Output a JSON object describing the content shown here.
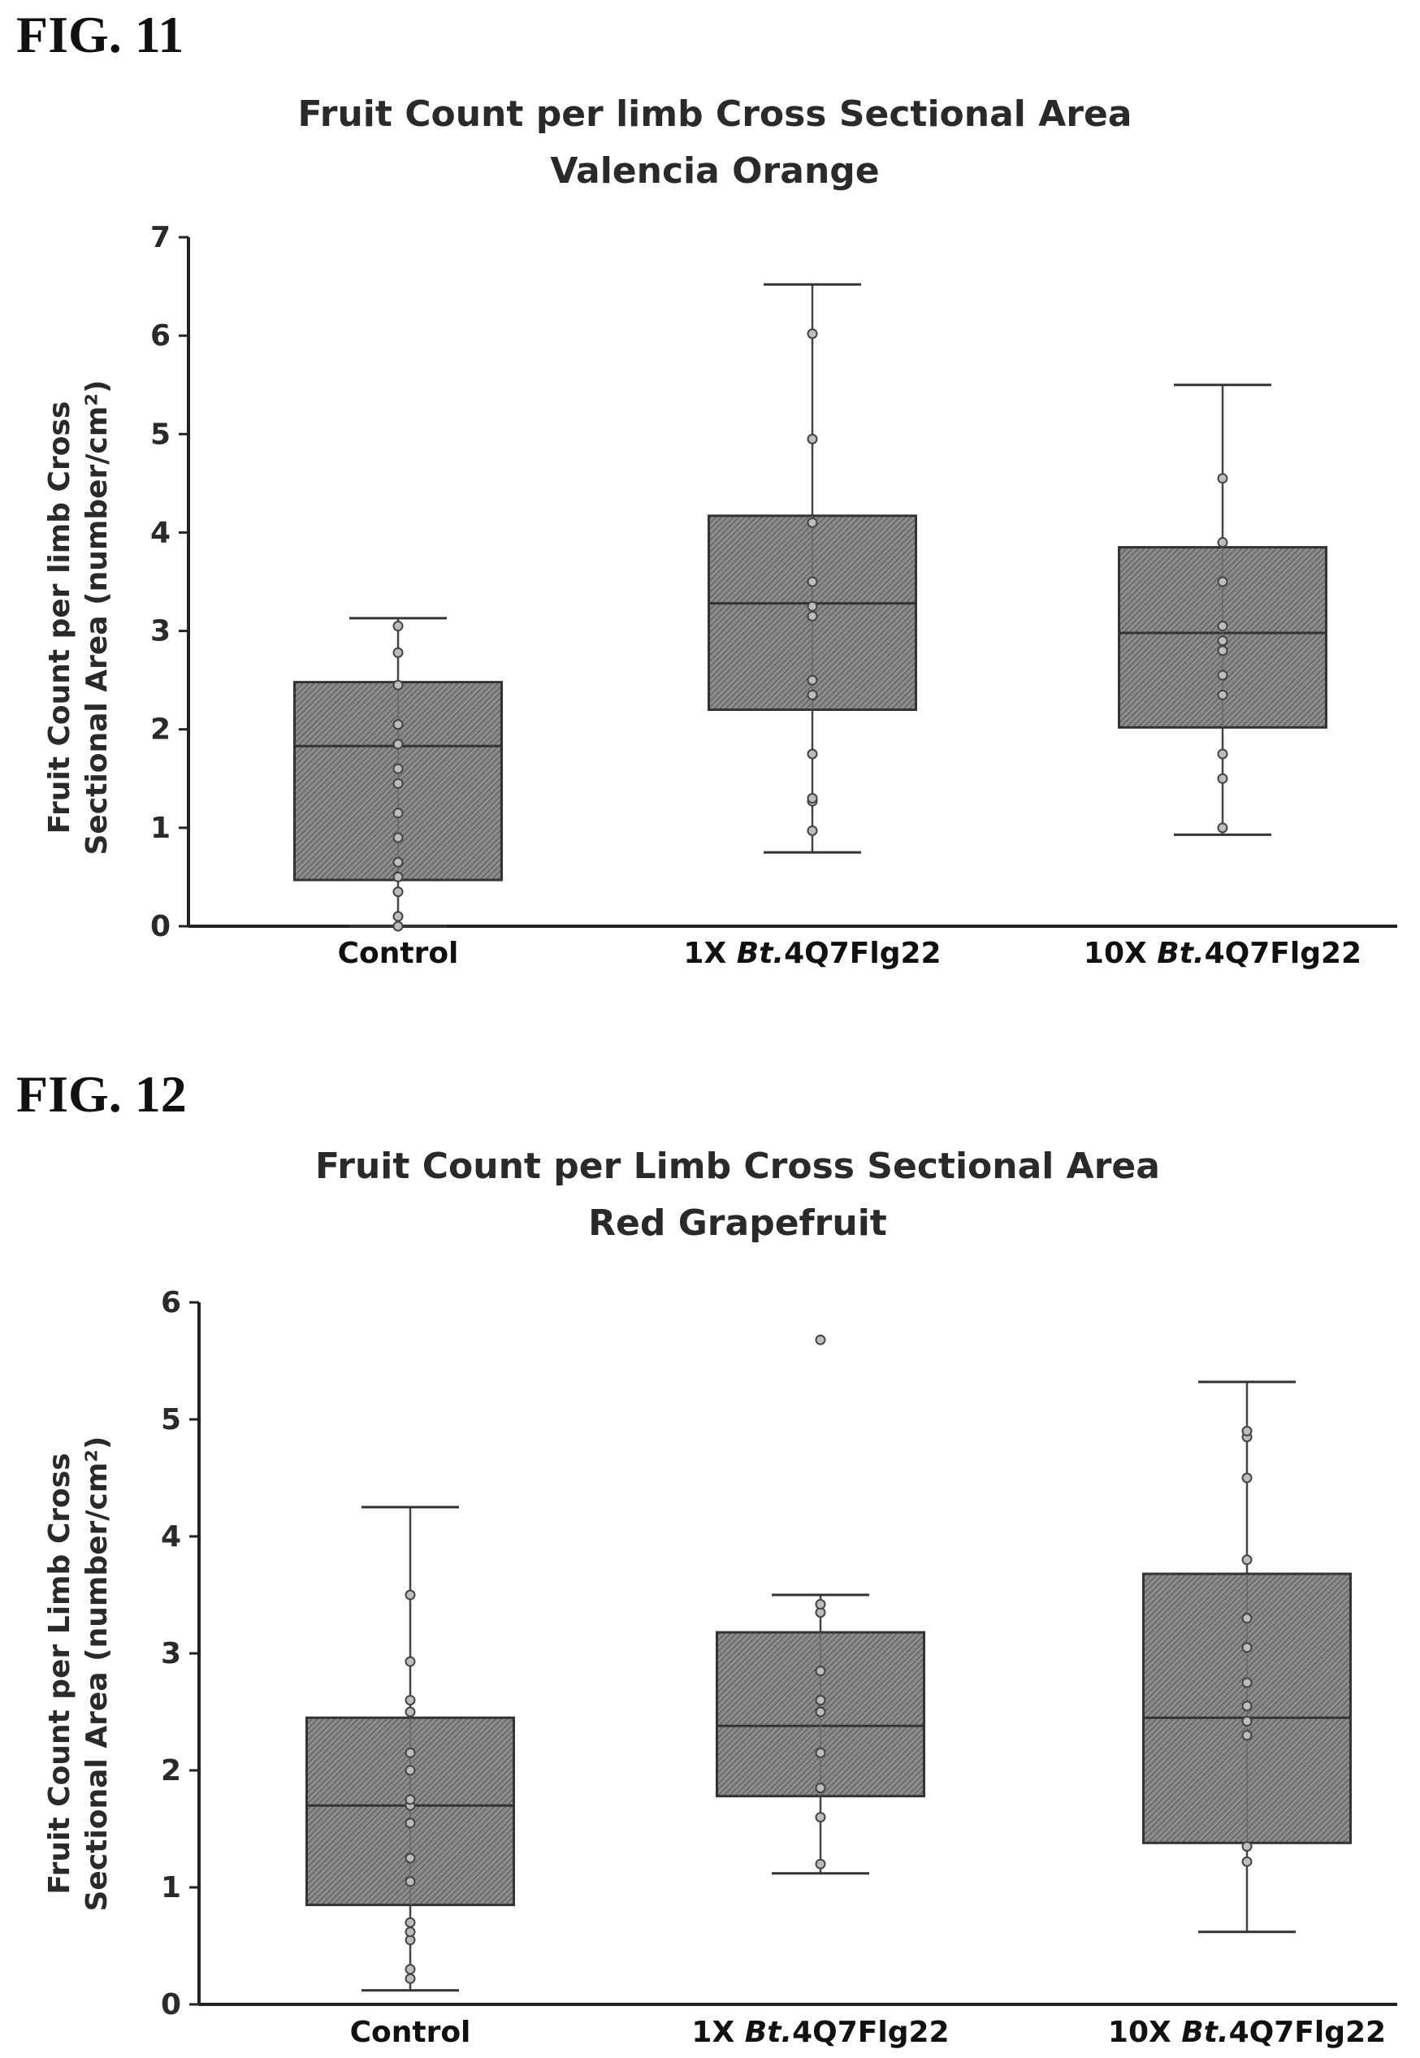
{
  "figures": [
    {
      "label": "FIG. 11"
    },
    {
      "label": "FIG. 12"
    }
  ],
  "chart_data": [
    {
      "type": "box",
      "title_line1": "Fruit Count per limb Cross Sectional Area",
      "title_line2": "Valencia Orange",
      "ylabel_line1": "Fruit Count per limb Cross",
      "ylabel_line2": "Sectional Area (number/cm²)",
      "ylim": [
        0,
        7
      ],
      "yticks": [
        "0",
        "1",
        "2",
        "3",
        "4",
        "5",
        "6",
        "7"
      ],
      "categories": [
        {
          "prefix": "Control",
          "italic": "",
          "suffix": ""
        },
        {
          "prefix": "1X ",
          "italic": "Bt.",
          "suffix": "4Q7Flg22"
        },
        {
          "prefix": "10X ",
          "italic": "Bt.",
          "suffix": "4Q7Flg22"
        }
      ],
      "boxes": [
        {
          "whisker_low": 0.0,
          "q1": 0.47,
          "median": 1.83,
          "q3": 2.48,
          "whisker_high": 3.13,
          "points": [
            0.0,
            0.1,
            0.35,
            0.5,
            0.65,
            0.9,
            1.15,
            1.45,
            1.6,
            1.85,
            2.05,
            2.45,
            2.78,
            3.05
          ]
        },
        {
          "whisker_low": 0.75,
          "q1": 2.2,
          "median": 3.28,
          "q3": 4.17,
          "whisker_high": 6.52,
          "points": [
            0.97,
            1.27,
            1.3,
            1.75,
            2.35,
            2.5,
            3.15,
            3.25,
            3.5,
            4.1,
            4.95,
            6.02
          ]
        },
        {
          "whisker_low": 0.93,
          "q1": 2.02,
          "median": 2.98,
          "q3": 3.85,
          "whisker_high": 5.5,
          "points": [
            1.0,
            1.5,
            1.75,
            2.35,
            2.55,
            2.8,
            2.9,
            3.05,
            3.5,
            3.9,
            4.55
          ]
        }
      ]
    },
    {
      "type": "box",
      "title_line1": "Fruit Count per Limb Cross Sectional Area",
      "title_line2": "Red Grapefruit",
      "ylabel_line1": "Fruit Count per Limb Cross",
      "ylabel_line2": "Sectional Area (number/cm²)",
      "ylim": [
        0,
        6
      ],
      "yticks": [
        "0",
        "1",
        "2",
        "3",
        "4",
        "5",
        "6"
      ],
      "categories": [
        {
          "prefix": "Control",
          "italic": "",
          "suffix": ""
        },
        {
          "prefix": "1X ",
          "italic": "Bt.",
          "suffix": "4Q7Flg22"
        },
        {
          "prefix": "10X ",
          "italic": "Bt.",
          "suffix": "4Q7Flg22"
        }
      ],
      "boxes": [
        {
          "whisker_low": 0.12,
          "q1": 0.85,
          "median": 1.7,
          "q3": 2.45,
          "whisker_high": 4.25,
          "points": [
            0.22,
            0.3,
            0.55,
            0.62,
            0.7,
            1.05,
            1.25,
            1.55,
            1.7,
            1.75,
            2.0,
            2.15,
            2.5,
            2.6,
            2.93,
            3.5
          ]
        },
        {
          "whisker_low": 1.12,
          "q1": 1.78,
          "median": 2.38,
          "q3": 3.18,
          "whisker_high": 3.5,
          "points": [
            1.2,
            1.6,
            1.85,
            2.15,
            2.5,
            2.6,
            2.85,
            3.35,
            3.42,
            5.68
          ]
        },
        {
          "whisker_low": 0.62,
          "q1": 1.38,
          "median": 2.45,
          "q3": 3.68,
          "whisker_high": 5.32,
          "points": [
            1.22,
            1.35,
            2.3,
            2.42,
            2.55,
            2.75,
            3.05,
            3.3,
            3.8,
            4.5,
            4.85,
            4.9
          ]
        }
      ]
    }
  ]
}
